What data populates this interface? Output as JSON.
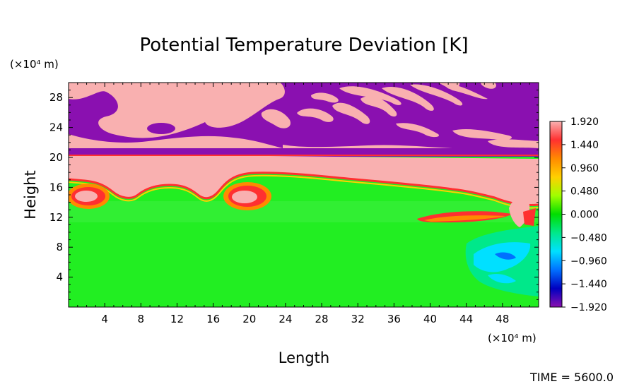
{
  "chart_data": {
    "type": "heatmap",
    "title": "Potential Temperature Deviation [K]",
    "xlabel": "Length",
    "ylabel": "Height",
    "x_unit": "(×10⁴ m)",
    "y_unit": "(×10⁴ m)",
    "xlim": [
      0,
      52
    ],
    "ylim": [
      0,
      30
    ],
    "x_ticks": [
      4,
      8,
      12,
      16,
      20,
      24,
      28,
      32,
      36,
      40,
      44,
      48
    ],
    "y_ticks": [
      4,
      8,
      12,
      16,
      20,
      24,
      28
    ],
    "colorbar": {
      "ticks": [
        "1.920",
        "1.440",
        "0.960",
        "0.480",
        "0.000",
        "−0.480",
        "−0.960",
        "−1.440",
        "−1.920"
      ],
      "range": [
        -1.92,
        1.92
      ],
      "colors": [
        "#f9b0b0",
        "#ff3030",
        "#ff8a00",
        "#ffd000",
        "#a0ff00",
        "#00dd00",
        "#00e88a",
        "#00e0ff",
        "#0070ff",
        "#0000c0",
        "#8a10b0"
      ]
    },
    "regions": {
      "stratosphere_value": -1.92,
      "warm_band_value": 1.92,
      "troposphere_value": 0.0
    },
    "annotation": "TIME = 5600.0"
  }
}
